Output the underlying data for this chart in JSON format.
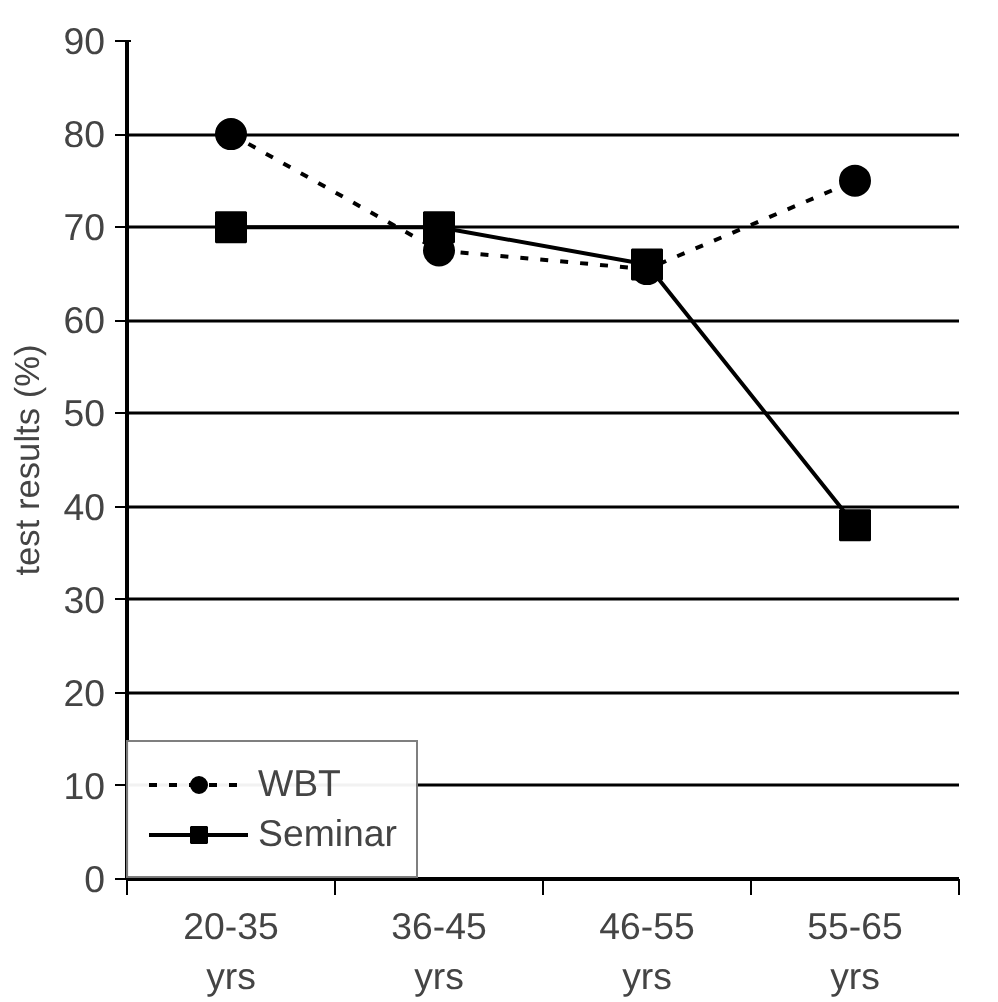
{
  "chart_data": {
    "type": "line",
    "ylabel": "test results (%)",
    "categories": [
      "20-35\nyrs",
      "36-45\nyrs",
      "46-55\nyrs",
      "55-65\nyrs"
    ],
    "series": [
      {
        "name": "WBT",
        "color": "#000000",
        "marker": "circle",
        "line_style": "dotted",
        "values": [
          80,
          67.5,
          65.5,
          75
        ]
      },
      {
        "name": "Seminar",
        "color": "#000000",
        "marker": "square",
        "line_style": "solid",
        "values": [
          70,
          70,
          66,
          38
        ]
      }
    ],
    "ylim": [
      0,
      90
    ],
    "yticks": [
      0,
      10,
      20,
      30,
      40,
      50,
      60,
      70,
      80,
      90
    ],
    "grid": "y",
    "legend": "bottom left"
  }
}
